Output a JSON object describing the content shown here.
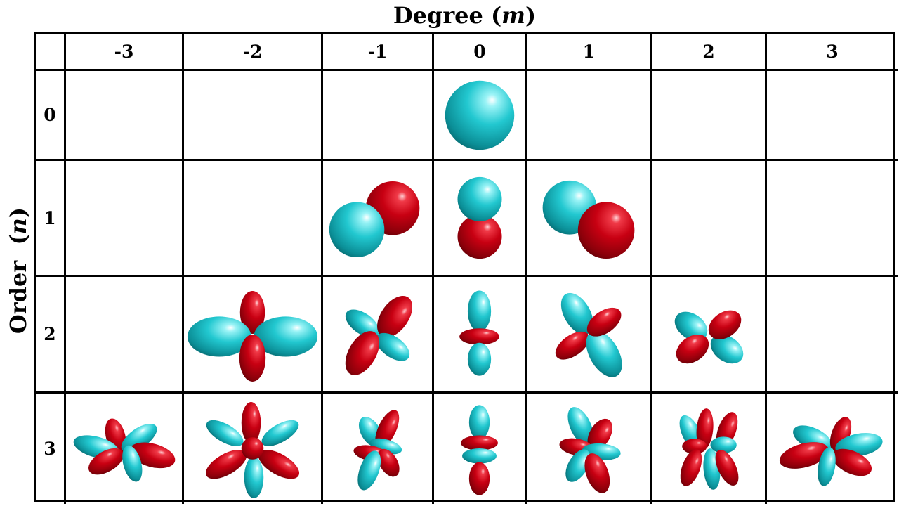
{
  "title_top": {
    "text": "Degree ",
    "var": "m"
  },
  "title_side": {
    "text": "Order ",
    "var": "n"
  },
  "columns": [
    "-3",
    "-2",
    "-1",
    "0",
    "1",
    "2",
    "3"
  ],
  "rows": [
    {
      "label": "0",
      "cells": [
        null,
        null,
        null,
        "n0-m0",
        null,
        null,
        null
      ]
    },
    {
      "label": "1",
      "cells": [
        null,
        null,
        "n1-m-1",
        "n1-m0",
        "n1-m1",
        null,
        null
      ]
    },
    {
      "label": "2",
      "cells": [
        null,
        "n2-m-2",
        "n2-m-1",
        "n2-m0",
        "n2-m1",
        "n2-m2",
        null
      ]
    },
    {
      "label": "3",
      "cells": [
        "n3-m-3",
        "n3-m-2",
        "n3-m-1",
        "n3-m0",
        "n3-m1",
        "n3-m2",
        "n3-m3"
      ]
    }
  ],
  "colors": {
    "positive": "#1fc4cc",
    "negative": "#c00010"
  }
}
